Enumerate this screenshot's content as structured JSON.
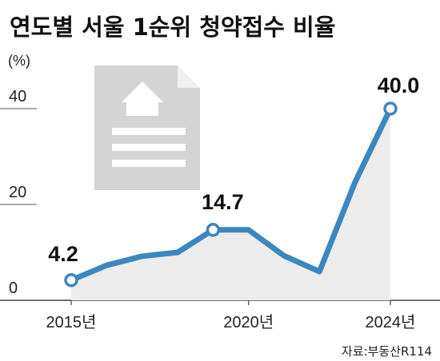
{
  "chart_data": {
    "type": "line",
    "title": "연도별 서울 1순위 청약접수 비율",
    "unit_label": "(%)",
    "ylim": [
      0,
      40
    ],
    "yticks": [
      "40",
      "20",
      "0"
    ],
    "x": [
      "2015",
      "2016",
      "2017",
      "2018",
      "2019",
      "2020",
      "2021",
      "2022",
      "2023",
      "2024"
    ],
    "values": [
      4.2,
      7.3,
      9.2,
      10.0,
      14.7,
      14.7,
      9.3,
      6.0,
      24.6,
      40.0
    ],
    "xtick_labels": [
      "2015년",
      "2020년",
      "2024년"
    ],
    "data_labels": [
      {
        "index": 0,
        "text": "4.2"
      },
      {
        "index": 4,
        "text": "14.7"
      },
      {
        "index": 9,
        "text": "40.0"
      }
    ],
    "source": "자료:부동산R114",
    "grid": false,
    "legend": "none"
  },
  "colors": {
    "line": "#3b87c0",
    "marker_stroke": "#3b87c0",
    "area": "#ececec",
    "icon": "#cfcfcf"
  },
  "decor_icon": "document-house-icon"
}
